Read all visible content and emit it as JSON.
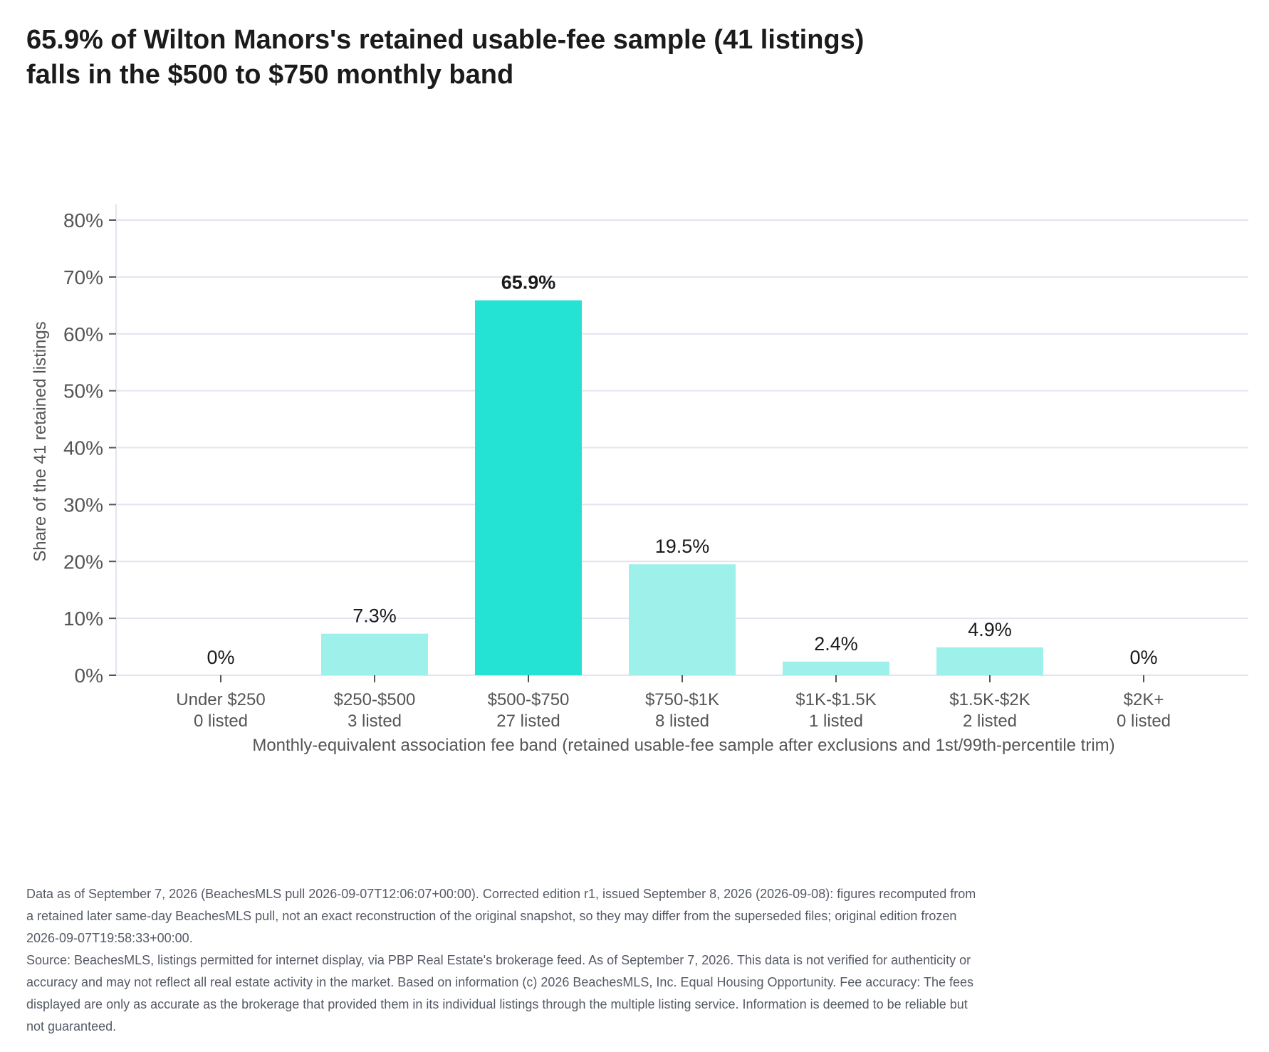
{
  "title": {
    "line1": "65.9% of Wilton Manors's retained usable-fee sample (41 listings)",
    "line2": "falls in the $500 to $750 monthly band"
  },
  "colors": {
    "highlight_bar": "#25e3d4",
    "other_bar": "#9df1ea",
    "grid": "#e3e4f0",
    "axis_text": "#555555",
    "label_text": "#1a1a1a"
  },
  "chart_data": {
    "type": "bar",
    "categories": [
      "Under $250",
      "$250-$500",
      "$500-$750",
      "$750-$1K",
      "$1K-$1.5K",
      "$1.5K-$2K",
      "$2K+"
    ],
    "counts": [
      "0 listed",
      "3 listed",
      "27 listed",
      "8 listed",
      "1 listed",
      "2 listed",
      "0 listed"
    ],
    "values": [
      0,
      7.3,
      65.9,
      19.5,
      2.4,
      4.9,
      0
    ],
    "value_labels": [
      "0%",
      "7.3%",
      "65.9%",
      "19.5%",
      "2.4%",
      "4.9%",
      "0%"
    ],
    "highlight_index": 2,
    "xlabel": "Monthly-equivalent association fee band (retained usable-fee sample after exclusions and 1st/99th-percentile trim)",
    "ylabel": "Share of the 41 retained listings",
    "ylim": [
      0,
      80
    ],
    "yticks": [
      0,
      10,
      20,
      30,
      40,
      50,
      60,
      70,
      80
    ],
    "ytick_labels": [
      "0%",
      "10%",
      "20%",
      "30%",
      "40%",
      "50%",
      "60%",
      "70%",
      "80%"
    ],
    "grid": true,
    "legend": "none"
  },
  "footnotes": {
    "edition": "Data as of September 7, 2026 (BeachesMLS pull 2026-09-07T12:06:07+00:00). Corrected edition r1, issued September 8, 2026 (2026-09-08): figures recomputed from a retained later same-day BeachesMLS pull, not an exact reconstruction of the original snapshot, so they may differ from the superseded files; original edition frozen 2026-09-07T19:58:33+00:00.",
    "source": "Source: BeachesMLS, listings permitted for internet display, via PBP Real Estate's brokerage feed. As of September 7, 2026. This data is not verified for authenticity or accuracy and may not reflect all real estate activity in the market. Based on information (c) 2026 BeachesMLS, Inc. Equal Housing Opportunity. Fee accuracy: The fees displayed are only as accurate as the brokerage that provided them in its individual listings through the multiple listing service. Information is deemed to be reliable but not guaranteed."
  }
}
